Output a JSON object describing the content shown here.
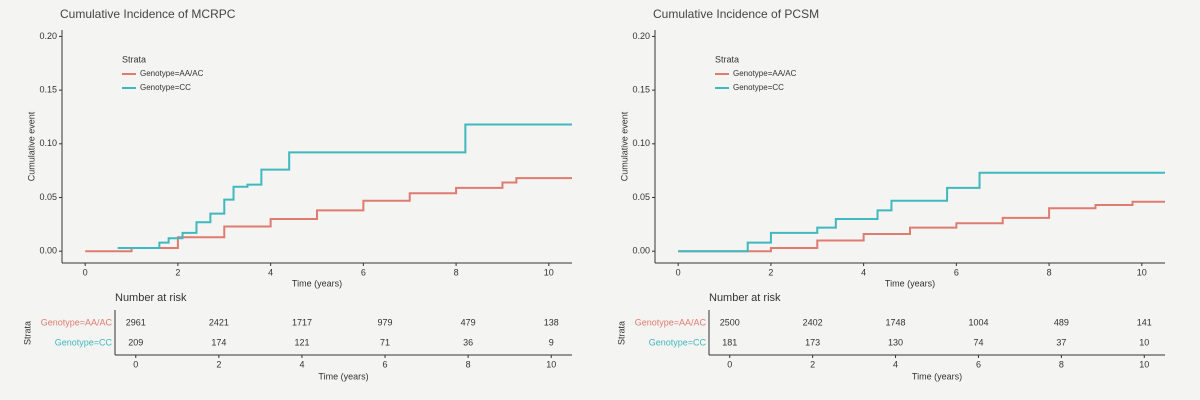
{
  "chart_data": [
    {
      "type": "step",
      "title": "Cumulative Incidence of MCRPC",
      "xlabel": "Time (years)",
      "ylabel": "Cumulative event",
      "xlim": [
        -0.5,
        10.5
      ],
      "xticks": [
        0,
        2,
        4,
        6,
        8,
        10
      ],
      "ylim": [
        -0.011,
        0.206
      ],
      "yticks": [
        {
          "value": 0,
          "label": "0.00"
        },
        {
          "value": 0.05,
          "label": "0.05"
        },
        {
          "value": 0.1,
          "label": "0.10"
        },
        {
          "value": 0.15,
          "label": "0.15"
        },
        {
          "value": 0.2,
          "label": "0.20"
        }
      ],
      "legend_title": "Strata",
      "legend": "top-left",
      "series": [
        {
          "name": "Genotype=AA/AC",
          "color": "#e07b6f",
          "x": [
            0,
            1,
            2,
            3,
            4,
            5,
            6,
            7,
            8,
            9,
            9.3,
            10.5
          ],
          "values": [
            0,
            0.003,
            0.013,
            0.023,
            0.03,
            0.038,
            0.047,
            0.054,
            0.059,
            0.064,
            0.068,
            0.068
          ]
        },
        {
          "name": "Genotype=CC",
          "color": "#3fb8be",
          "x": [
            0.7,
            1.6,
            1.8,
            2.1,
            2.4,
            2.7,
            3.0,
            3.2,
            3.5,
            3.8,
            4.4,
            8.2,
            10.5
          ],
          "values": [
            0.003,
            0.008,
            0.012,
            0.017,
            0.027,
            0.035,
            0.048,
            0.06,
            0.062,
            0.076,
            0.092,
            0.118,
            0.118
          ]
        }
      ],
      "risk_table": {
        "title": "Number at risk",
        "ylabel": "Strata",
        "xlabel": "Time (years)",
        "xticks": [
          0,
          2,
          4,
          6,
          8,
          10
        ],
        "rows": [
          {
            "name": "Genotype=AA/AC",
            "color": "#e07b6f",
            "counts": [
              2961,
              2421,
              1717,
              979,
              479,
              138
            ]
          },
          {
            "name": "Genotype=CC",
            "color": "#3fb8be",
            "counts": [
              209,
              174,
              121,
              71,
              36,
              9
            ]
          }
        ]
      }
    },
    {
      "type": "step",
      "title": "Cumulative Incidence of PCSM",
      "xlabel": "Time (years)",
      "ylabel": "Cumulative event",
      "xlim": [
        -0.5,
        10.5
      ],
      "xticks": [
        0,
        2,
        4,
        6,
        8,
        10
      ],
      "ylim": [
        -0.011,
        0.206
      ],
      "yticks": [
        {
          "value": 0,
          "label": "0.00"
        },
        {
          "value": 0.05,
          "label": "0.05"
        },
        {
          "value": 0.1,
          "label": "0.10"
        },
        {
          "value": 0.15,
          "label": "0.15"
        },
        {
          "value": 0.2,
          "label": "0.20"
        }
      ],
      "legend_title": "Strata",
      "legend": "top-left",
      "series": [
        {
          "name": "Genotype=AA/AC",
          "color": "#e07b6f",
          "x": [
            0,
            2,
            3,
            4,
            5,
            6,
            7,
            8,
            9,
            9.8,
            10.5
          ],
          "values": [
            0,
            0.003,
            0.01,
            0.016,
            0.022,
            0.026,
            0.031,
            0.04,
            0.043,
            0.046,
            0.046
          ]
        },
        {
          "name": "Genotype=CC",
          "color": "#3fb8be",
          "x": [
            0,
            1.5,
            2.0,
            3.0,
            3.4,
            4.3,
            4.6,
            5.8,
            6.5,
            10.5
          ],
          "values": [
            0,
            0.008,
            0.017,
            0.022,
            0.03,
            0.038,
            0.047,
            0.059,
            0.073,
            0.073
          ]
        }
      ],
      "risk_table": {
        "title": "Number at risk",
        "ylabel": "Strata",
        "xlabel": "Time (years)",
        "xticks": [
          0,
          2,
          4,
          6,
          8,
          10
        ],
        "rows": [
          {
            "name": "Genotype=AA/AC",
            "color": "#e07b6f",
            "counts": [
              2500,
              2402,
              1748,
              1004,
              489,
              141
            ]
          },
          {
            "name": "Genotype=CC",
            "color": "#3fb8be",
            "counts": [
              181,
              173,
              130,
              74,
              37,
              10
            ]
          }
        ]
      }
    }
  ]
}
